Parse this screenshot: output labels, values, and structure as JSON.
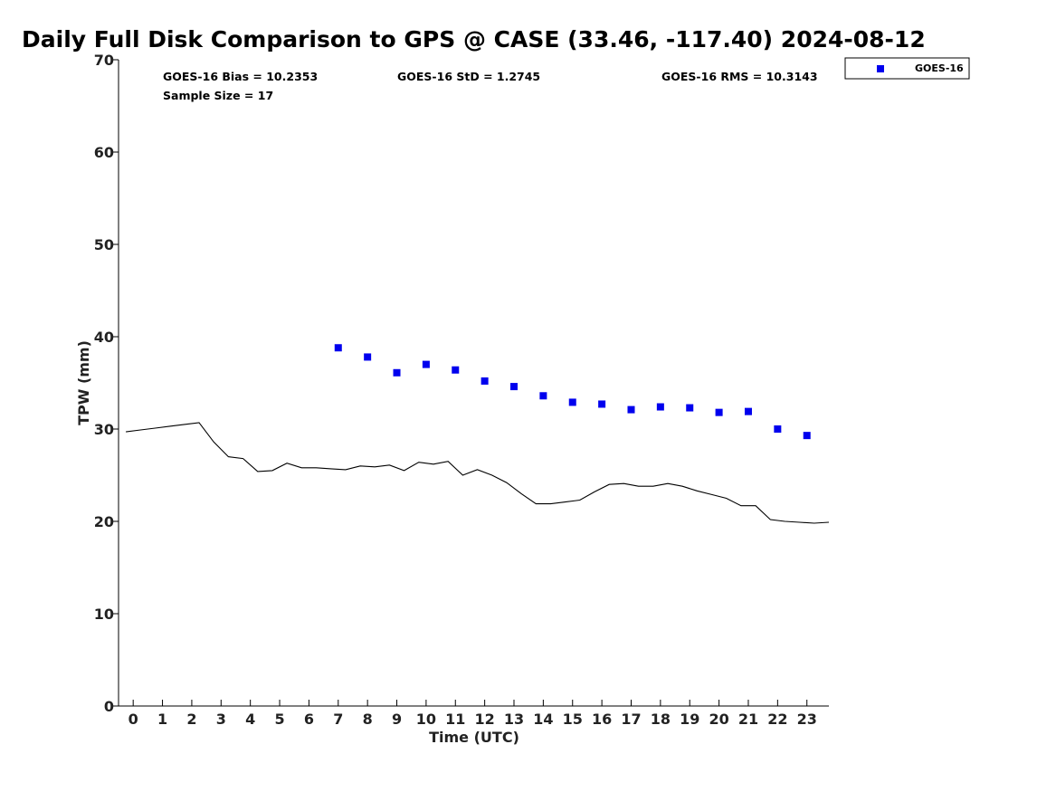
{
  "chart_data": {
    "type": "scatter",
    "title": "Daily Full Disk Comparison to GPS @ CASE (33.46, -117.40) 2024-08-12",
    "xlabel": "Time (UTC)",
    "ylabel": "TPW (mm)",
    "xlim": [
      -0.5,
      23.75
    ],
    "ylim": [
      0,
      70
    ],
    "xticks": [
      0,
      1,
      2,
      3,
      4,
      5,
      6,
      7,
      8,
      9,
      10,
      11,
      12,
      13,
      14,
      15,
      16,
      17,
      18,
      19,
      20,
      21,
      22,
      23
    ],
    "yticks": [
      0,
      10,
      20,
      30,
      40,
      50,
      60,
      70
    ],
    "grid": false,
    "legend_position": "top-right outside",
    "stats": {
      "bias": "GOES-16 Bias = 10.2353",
      "std": "GOES-16 StD = 1.2745",
      "rms": "GOES-16 RMS = 10.3143",
      "sample_size": "Sample Size = 17"
    },
    "series": [
      {
        "name": "GOES-16",
        "style": "square-markers",
        "color": "#0000ee",
        "x": [
          7,
          8,
          9,
          10,
          11,
          12,
          13,
          14,
          15,
          16,
          17,
          18,
          19,
          20,
          21,
          22,
          23
        ],
        "y": [
          38.8,
          37.8,
          36.1,
          37.0,
          36.4,
          35.2,
          34.6,
          33.6,
          32.9,
          32.7,
          32.1,
          32.4,
          32.3,
          31.8,
          31.9,
          30.0,
          29.3
        ]
      },
      {
        "style": "line",
        "color": "#000000",
        "x": [
          -0.25,
          0.25,
          0.75,
          1.25,
          1.75,
          2.25,
          2.75,
          3.25,
          3.75,
          4.25,
          4.75,
          5.25,
          5.75,
          6.25,
          6.75,
          7.25,
          7.75,
          8.25,
          8.75,
          9.25,
          9.75,
          10.25,
          10.75,
          11.25,
          11.75,
          12.25,
          12.75,
          13.25,
          13.75,
          14.25,
          14.75,
          15.25,
          15.75,
          16.25,
          16.75,
          17.25,
          17.75,
          18.25,
          18.75,
          19.25,
          19.75,
          20.25,
          20.75,
          21.25,
          21.75,
          22.25,
          22.75,
          23.25,
          23.75
        ],
        "y": [
          29.7,
          29.9,
          30.1,
          30.3,
          30.5,
          30.7,
          28.6,
          27.0,
          26.8,
          25.4,
          25.5,
          26.3,
          25.8,
          25.8,
          25.7,
          25.6,
          26.0,
          25.9,
          26.1,
          25.5,
          26.4,
          26.2,
          26.5,
          25.0,
          25.6,
          25.0,
          24.2,
          23.0,
          21.9,
          21.9,
          22.1,
          22.3,
          23.2,
          24.0,
          24.1,
          23.8,
          23.8,
          24.1,
          23.8,
          23.3,
          22.9,
          22.5,
          21.7,
          21.7,
          20.2,
          20.0,
          19.9,
          19.8,
          19.9
        ]
      }
    ]
  }
}
